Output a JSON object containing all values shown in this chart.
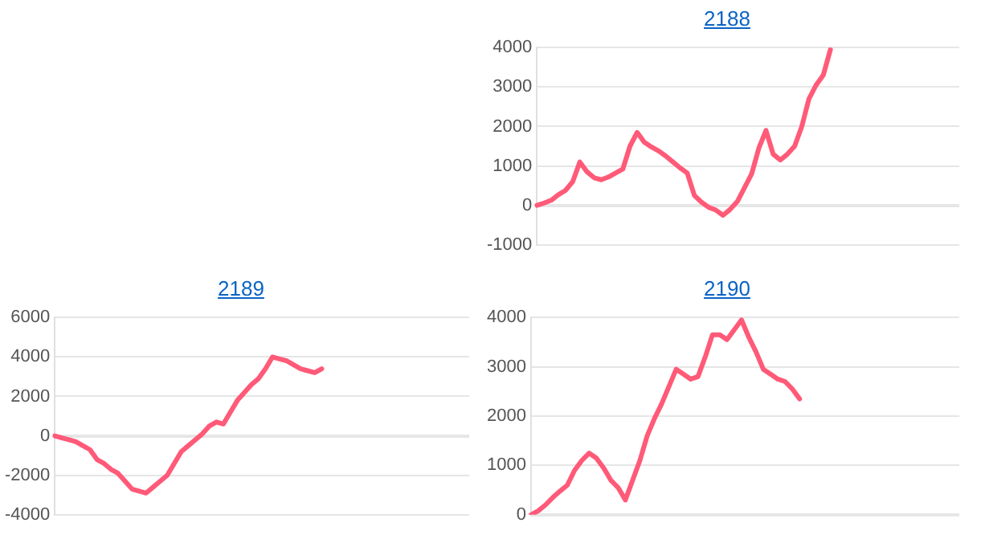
{
  "chart_data": [
    {
      "type": "line",
      "title": "2188",
      "categories": [
        null,
        null,
        null,
        null,
        null,
        null,
        null,
        null,
        null,
        null,
        null,
        null,
        null,
        null,
        null,
        null,
        null,
        null,
        null,
        null,
        null,
        null,
        null,
        null,
        null,
        null,
        null,
        null,
        null,
        null,
        null,
        null,
        null,
        null,
        null,
        null,
        null,
        null,
        null,
        null,
        null,
        null,
        null,
        null,
        null,
        null,
        null,
        null,
        null,
        null,
        null,
        null,
        null,
        null,
        null,
        null,
        null,
        null,
        null,
        null
      ],
      "series": [
        {
          "color": "#ff5a78",
          "values": [
            0,
            60,
            130,
            270,
            380,
            600,
            1100,
            850,
            700,
            650,
            720,
            820,
            920,
            1500,
            1850,
            1600,
            1480,
            1380,
            1250,
            1100,
            950,
            820,
            250,
            80,
            -50,
            -120,
            -250,
            -100,
            100,
            450,
            800,
            1450,
            1900,
            1300,
            1150,
            1300,
            1500,
            2000,
            2700,
            3050,
            3300,
            3950,
            null,
            null,
            null,
            null,
            null,
            null,
            null,
            null,
            null,
            null,
            null,
            null,
            null,
            null,
            null,
            null,
            null,
            null
          ]
        }
      ],
      "ylim": [
        -1000,
        4000
      ],
      "yticks": [
        -1000,
        0,
        1000,
        2000,
        3000,
        4000
      ],
      "grid": "y",
      "tick_labels": "y",
      "legend": false,
      "marker": "none",
      "line_style": "solid"
    },
    {
      "type": "line",
      "title": "2189",
      "categories": [
        null,
        null,
        null,
        null,
        null,
        null,
        null,
        null,
        null,
        null,
        null,
        null,
        null,
        null,
        null,
        null,
        null,
        null,
        null,
        null,
        null,
        null,
        null,
        null,
        null,
        null,
        null,
        null,
        null,
        null,
        null,
        null,
        null,
        null,
        null,
        null,
        null,
        null,
        null,
        null,
        null,
        null,
        null,
        null,
        null,
        null,
        null,
        null,
        null,
        null,
        null,
        null,
        null,
        null,
        null,
        null,
        null,
        null,
        null,
        null
      ],
      "series": [
        {
          "color": "#ff5a78",
          "values": [
            0,
            -100,
            -200,
            -300,
            -500,
            -700,
            -1200,
            -1400,
            -1700,
            -1900,
            -2300,
            -2700,
            -2800,
            -2900,
            -2600,
            -2300,
            -2000,
            -1400,
            -800,
            -500,
            -200,
            100,
            500,
            700,
            600,
            1200,
            1800,
            2200,
            2600,
            2900,
            3400,
            4000,
            3900,
            3800,
            3600,
            3400,
            3300,
            3200,
            3400,
            null,
            null,
            null,
            null,
            null,
            null,
            null,
            null,
            null,
            null,
            null,
            null,
            null,
            null,
            null,
            null,
            null,
            null,
            null,
            null,
            null
          ]
        }
      ],
      "ylim": [
        -4000,
        6000
      ],
      "yticks": [
        -4000,
        -2000,
        0,
        2000,
        4000,
        6000
      ],
      "grid": "y",
      "tick_labels": "y",
      "legend": false,
      "marker": "none",
      "line_style": "solid"
    },
    {
      "type": "line",
      "title": "2190",
      "categories": [
        null,
        null,
        null,
        null,
        null,
        null,
        null,
        null,
        null,
        null,
        null,
        null,
        null,
        null,
        null,
        null,
        null,
        null,
        null,
        null,
        null,
        null,
        null,
        null,
        null,
        null,
        null,
        null,
        null,
        null,
        null,
        null,
        null,
        null,
        null,
        null,
        null,
        null,
        null,
        null,
        null,
        null,
        null,
        null,
        null,
        null,
        null,
        null,
        null,
        null,
        null,
        null,
        null,
        null,
        null,
        null,
        null,
        null,
        null,
        null
      ],
      "series": [
        {
          "color": "#ff5a78",
          "values": [
            0,
            80,
            200,
            350,
            480,
            600,
            900,
            1100,
            1250,
            1150,
            950,
            700,
            550,
            300,
            700,
            1100,
            1600,
            1950,
            2250,
            2600,
            2950,
            2850,
            2750,
            2800,
            3200,
            3650,
            3650,
            3550,
            3750,
            3950,
            3600,
            3300,
            2950,
            2850,
            2750,
            2700,
            2550,
            2350,
            null,
            null,
            null,
            null,
            null,
            null,
            null,
            null,
            null,
            null,
            null,
            null,
            null,
            null,
            null,
            null,
            null,
            null,
            null,
            null,
            null,
            null
          ]
        }
      ],
      "ylim": [
        0,
        4000
      ],
      "yticks": [
        0,
        1000,
        2000,
        3000,
        4000
      ],
      "grid": "y",
      "tick_labels": "y",
      "legend": false,
      "marker": "none",
      "line_style": "solid"
    }
  ]
}
